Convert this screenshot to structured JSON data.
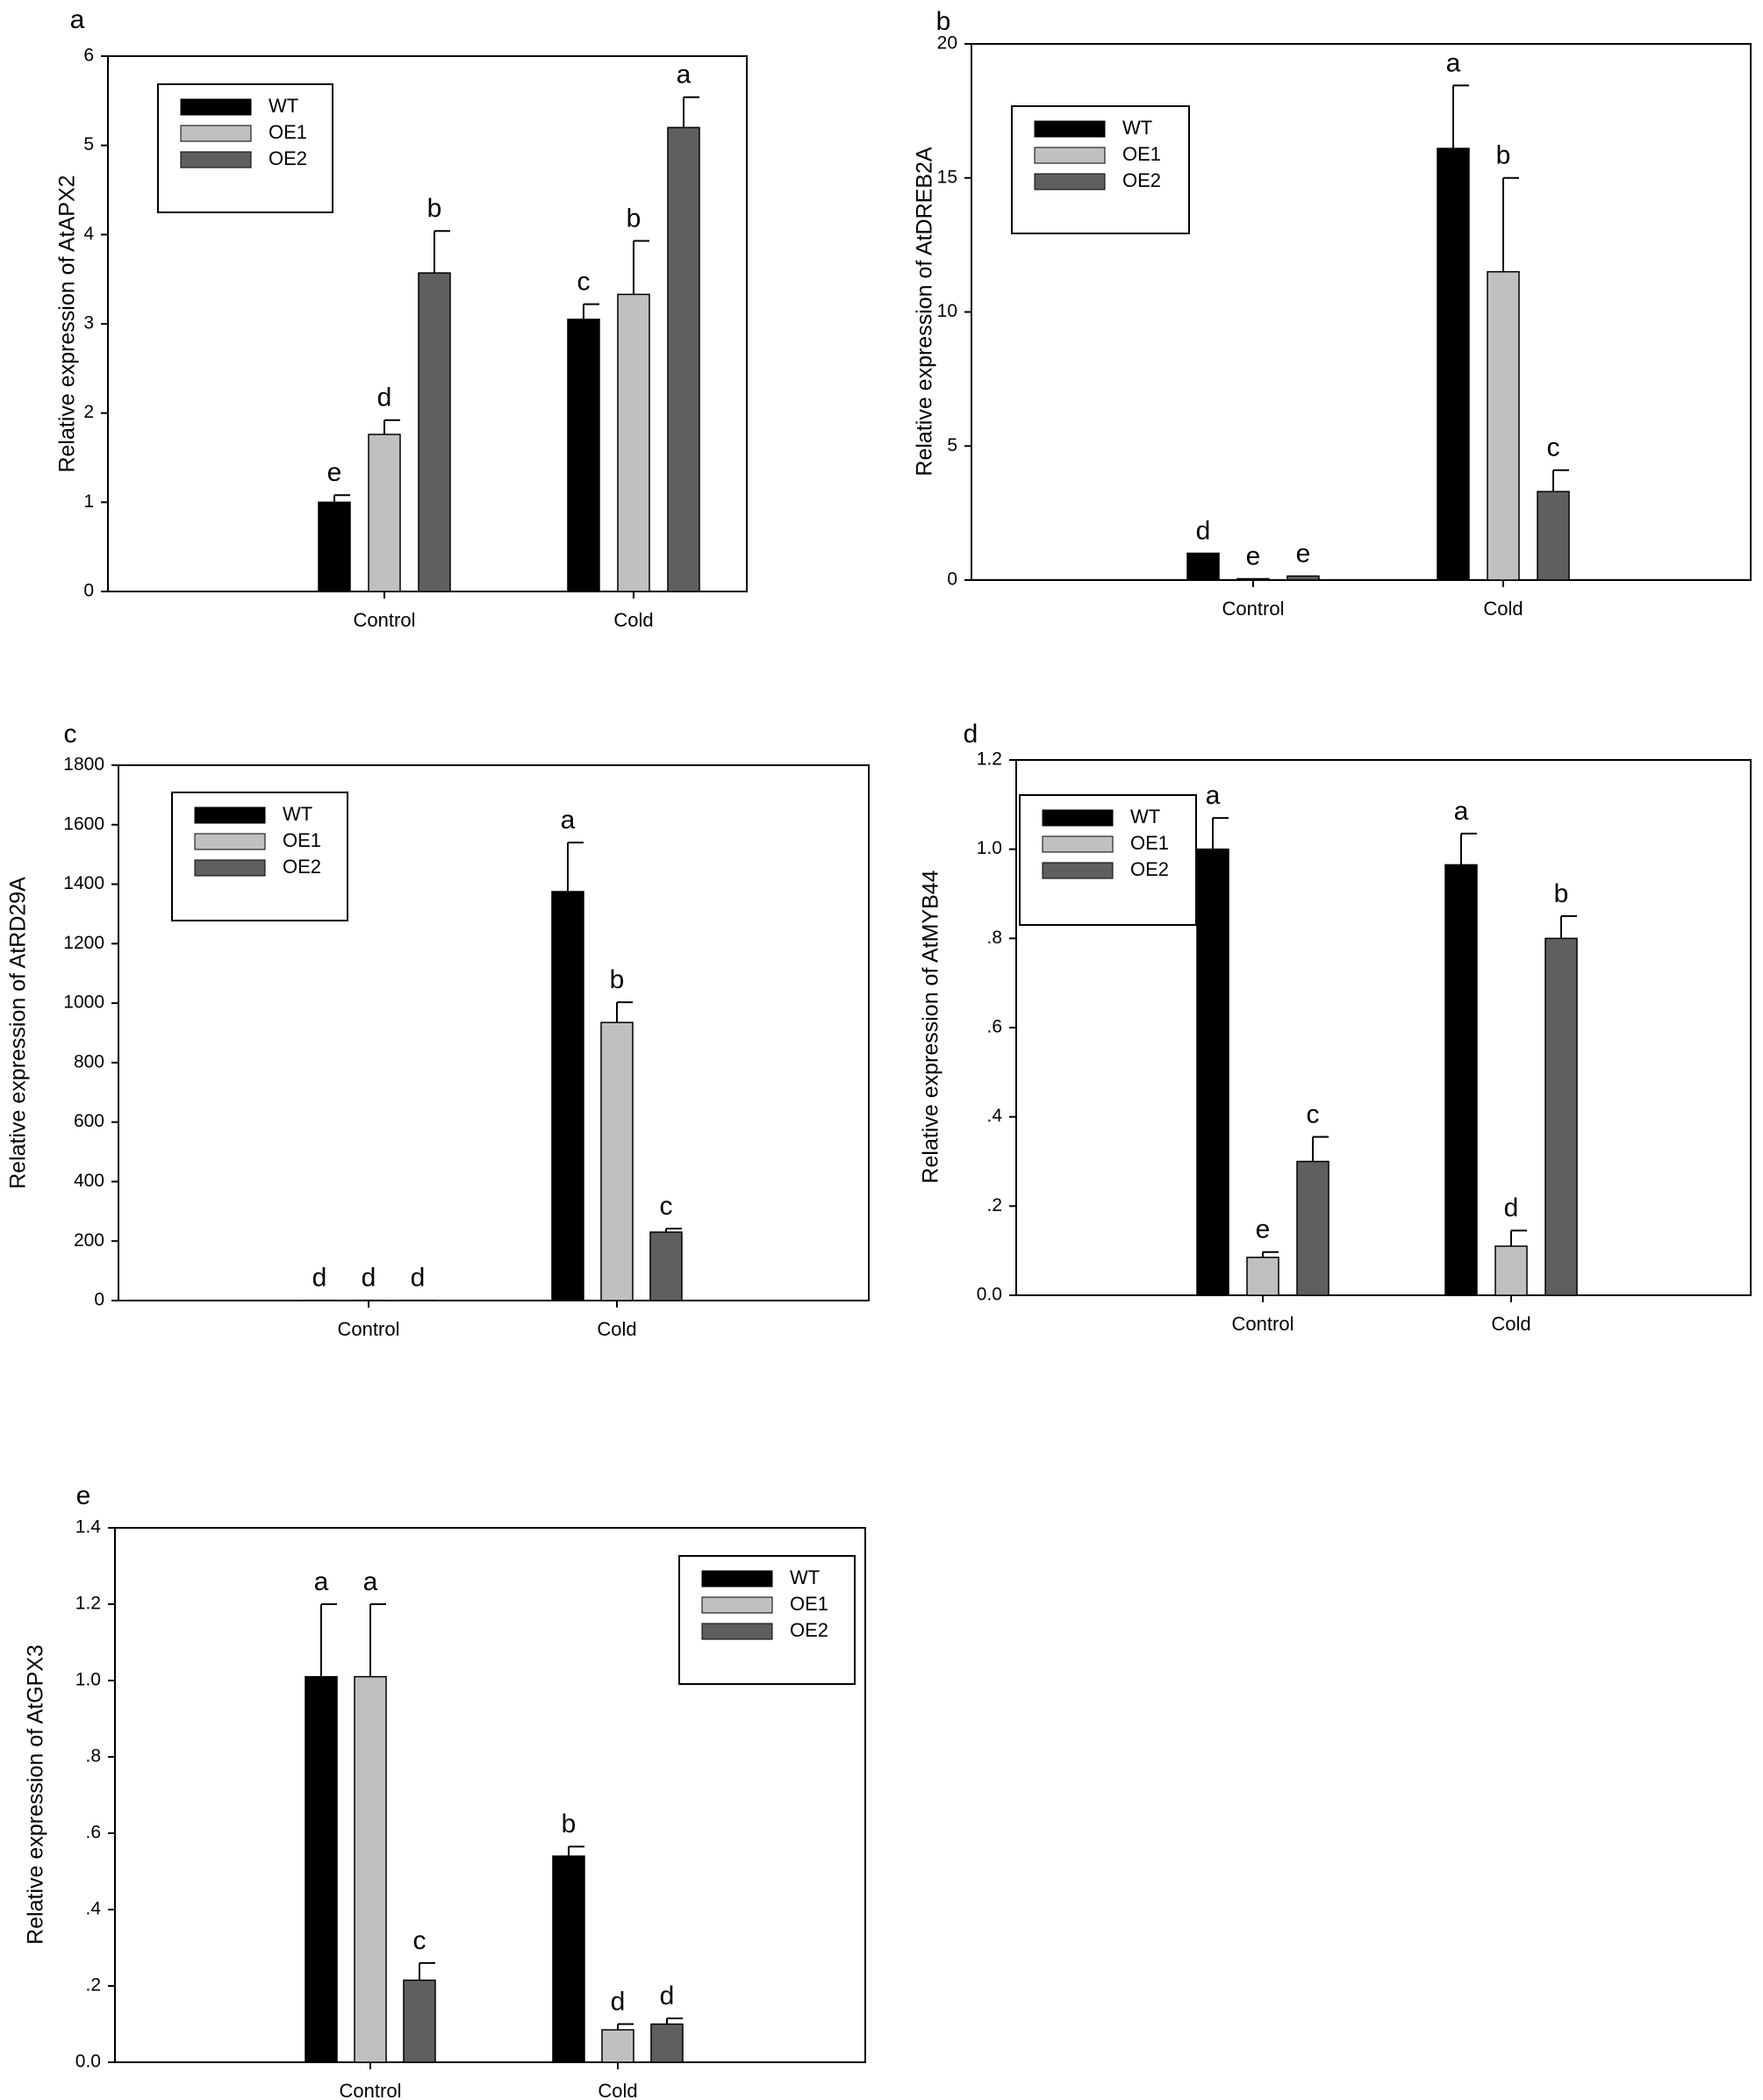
{
  "colors": {
    "WT": "#000000",
    "OE1": "#c0c0c0",
    "OE2": "#5f5f5f",
    "frame": "#000000"
  },
  "chart_data": [
    {
      "panel": "a",
      "type": "bar",
      "ylabel": "Relative expression of AtAPX2",
      "categories": [
        "Control",
        "Cold"
      ],
      "ylim": [
        0,
        6
      ],
      "yticks": [
        0,
        1,
        2,
        3,
        4,
        5,
        6
      ],
      "ytick_labels": [
        "0",
        "1",
        "2",
        "3",
        "4",
        "5",
        "6"
      ],
      "legend_position": "top-left",
      "series": [
        {
          "name": "WT",
          "values": [
            1.0,
            3.05
          ],
          "errors": [
            0.08,
            0.17
          ],
          "letters": [
            "e",
            "c"
          ]
        },
        {
          "name": "OE1",
          "values": [
            1.76,
            3.33
          ],
          "errors": [
            0.16,
            0.6
          ],
          "letters": [
            "d",
            "b"
          ]
        },
        {
          "name": "OE2",
          "values": [
            3.57,
            5.2
          ],
          "errors": [
            0.47,
            0.34
          ],
          "letters": [
            "b",
            "a"
          ]
        }
      ]
    },
    {
      "panel": "b",
      "type": "bar",
      "ylabel": "Relative expression of AtDREB2A",
      "categories": [
        "Control",
        "Cold"
      ],
      "ylim": [
        0,
        20
      ],
      "yticks": [
        0,
        5,
        10,
        15,
        20
      ],
      "ytick_labels": [
        "0",
        "5",
        "10",
        "15",
        "20"
      ],
      "legend_position": "top-left",
      "series": [
        {
          "name": "WT",
          "values": [
            1.0,
            16.1
          ],
          "errors": [
            0.0,
            2.35
          ],
          "letters": [
            "d",
            "a"
          ]
        },
        {
          "name": "OE1",
          "values": [
            0.05,
            11.5
          ],
          "errors": [
            0.0,
            3.5
          ],
          "letters": [
            "e",
            "b"
          ]
        },
        {
          "name": "OE2",
          "values": [
            0.15,
            3.3
          ],
          "errors": [
            0.0,
            0.8
          ],
          "letters": [
            "e",
            "c"
          ]
        }
      ]
    },
    {
      "panel": "c",
      "type": "bar",
      "ylabel": "Relative expression of AtRD29A",
      "categories": [
        "Control",
        "Cold"
      ],
      "ylim": [
        0,
        1800
      ],
      "yticks": [
        0,
        200,
        400,
        600,
        800,
        1000,
        1200,
        1400,
        1600,
        1800
      ],
      "ytick_labels": [
        "0",
        "200",
        "400",
        "600",
        "800",
        "1000",
        "1200",
        "1400",
        "1600",
        "1800"
      ],
      "legend_position": "top-left",
      "series": [
        {
          "name": "WT",
          "values": [
            1,
            1375
          ],
          "errors": [
            0,
            165
          ],
          "letters": [
            "d",
            "a"
          ]
        },
        {
          "name": "OE1",
          "values": [
            1,
            935
          ],
          "errors": [
            0,
            68
          ],
          "letters": [
            "d",
            "b"
          ]
        },
        {
          "name": "OE2",
          "values": [
            1,
            230
          ],
          "errors": [
            0,
            12
          ],
          "letters": [
            "d",
            "c"
          ]
        }
      ]
    },
    {
      "panel": "d",
      "type": "bar",
      "ylabel": "Relative expression of AtMYB44",
      "categories": [
        "Control",
        "Cold"
      ],
      "ylim": [
        0,
        1.2
      ],
      "yticks": [
        0,
        0.2,
        0.4,
        0.6,
        0.8,
        1.0,
        1.2
      ],
      "ytick_labels": [
        "0.0",
        ".2",
        ".4",
        ".6",
        ".8",
        "1.0",
        "1.2"
      ],
      "legend_position": "top-left",
      "series": [
        {
          "name": "WT",
          "values": [
            1.0,
            0.965
          ],
          "errors": [
            0.07,
            0.07
          ],
          "letters": [
            "a",
            "a"
          ]
        },
        {
          "name": "OE1",
          "values": [
            0.085,
            0.11
          ],
          "errors": [
            0.012,
            0.035
          ],
          "letters": [
            "e",
            "d"
          ]
        },
        {
          "name": "OE2",
          "values": [
            0.3,
            0.8
          ],
          "errors": [
            0.055,
            0.05
          ],
          "letters": [
            "c",
            "b"
          ]
        }
      ]
    },
    {
      "panel": "e",
      "type": "bar",
      "ylabel": "Relative expression of AtGPX3",
      "categories": [
        "Control",
        "Cold"
      ],
      "ylim": [
        0,
        1.4
      ],
      "yticks": [
        0,
        0.2,
        0.4,
        0.6,
        0.8,
        1.0,
        1.2,
        1.4
      ],
      "ytick_labels": [
        "0.0",
        ".2",
        ".4",
        ".6",
        ".8",
        "1.0",
        "1.2",
        "1.4"
      ],
      "legend_position": "top-right",
      "series": [
        {
          "name": "WT",
          "values": [
            1.01,
            0.54
          ],
          "errors": [
            0.19,
            0.025
          ],
          "letters": [
            "a",
            "b"
          ]
        },
        {
          "name": "OE1",
          "values": [
            1.01,
            0.085
          ],
          "errors": [
            0.19,
            0.015
          ],
          "letters": [
            "a",
            "d"
          ]
        },
        {
          "name": "OE2",
          "values": [
            0.215,
            0.1
          ],
          "errors": [
            0.045,
            0.015
          ],
          "letters": [
            "c",
            "d"
          ]
        }
      ]
    }
  ]
}
